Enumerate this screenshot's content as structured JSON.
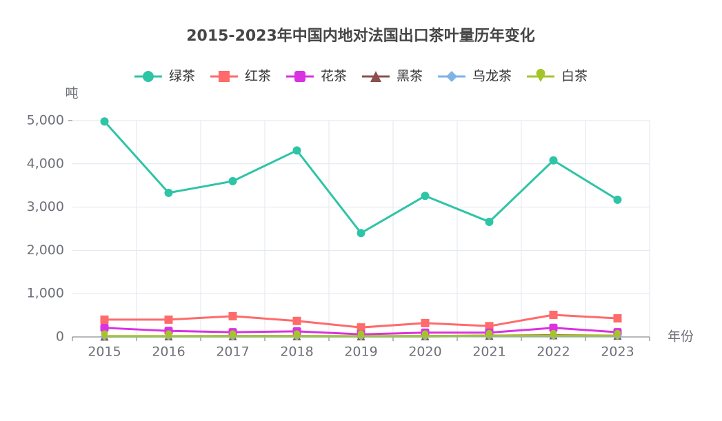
{
  "chart_data": {
    "type": "line",
    "title": "2015-2023年中国内地对法国出口茶叶量历年变化",
    "y_label": "吨",
    "x_label": "年份",
    "legend": "top",
    "grid": true,
    "categories": [
      "2015",
      "2016",
      "2017",
      "2018",
      "2019",
      "2020",
      "2021",
      "2022",
      "2023"
    ],
    "ylim": [
      0,
      5000
    ],
    "yticks": [
      0,
      {
        "value": 1000,
        "label": "1,000"
      },
      {
        "value": 2000,
        "label": "2,000"
      },
      {
        "value": 3000,
        "label": "3,000"
      },
      {
        "value": 4000,
        "label": "4,000"
      },
      {
        "value": 5000,
        "label": "5,000"
      }
    ],
    "series": [
      {
        "name": "绿茶",
        "color": "#2ec4a6",
        "marker": "circle",
        "values": [
          4980,
          3330,
          3600,
          4310,
          2400,
          3260,
          2660,
          4080,
          3170
        ]
      },
      {
        "name": "红茶",
        "color": "#ff6a6a",
        "marker": "rect",
        "values": [
          400,
          400,
          480,
          370,
          220,
          320,
          250,
          510,
          430
        ]
      },
      {
        "name": "花茶",
        "color": "#d932e0",
        "marker": "roundRect",
        "values": [
          210,
          140,
          110,
          130,
          60,
          100,
          100,
          210,
          110
        ]
      },
      {
        "name": "黑茶",
        "color": "#8c4f4f",
        "marker": "triangle",
        "values": [
          10,
          15,
          20,
          20,
          15,
          20,
          30,
          40,
          30
        ]
      },
      {
        "name": "乌龙茶",
        "color": "#7fb2e5",
        "marker": "diamond",
        "values": [
          10,
          10,
          10,
          10,
          10,
          10,
          20,
          20,
          20
        ]
      },
      {
        "name": "白茶",
        "color": "#a5c42a",
        "marker": "pin",
        "values": [
          20,
          20,
          20,
          20,
          20,
          20,
          30,
          30,
          30
        ]
      }
    ]
  }
}
